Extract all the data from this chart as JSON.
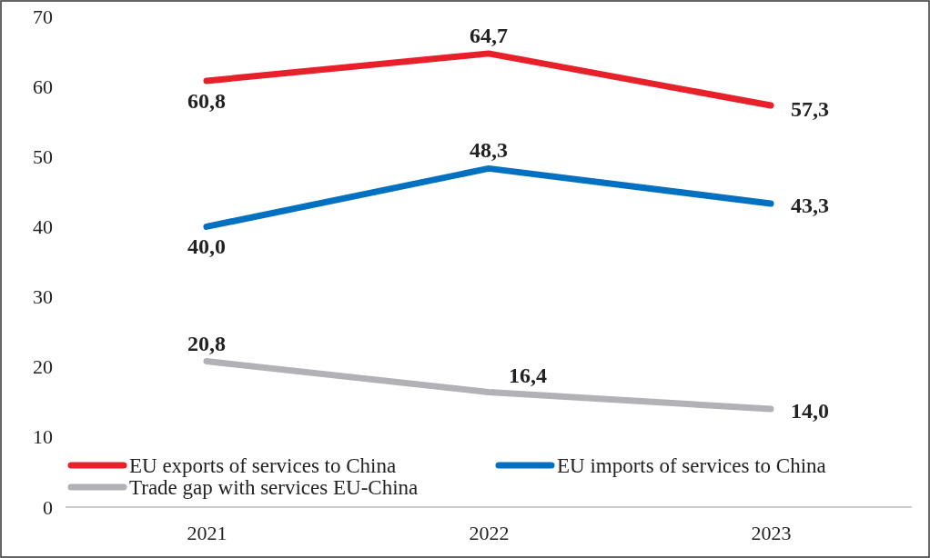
{
  "chart_data": {
    "type": "line",
    "categories": [
      "2021",
      "2022",
      "2023"
    ],
    "series": [
      {
        "name": "EU exports of services to China",
        "color": "#e8202a",
        "values": [
          60.8,
          64.7,
          57.3
        ],
        "value_labels": [
          "60,8",
          "64,7",
          "57,3"
        ]
      },
      {
        "name": "EU imports of services to China",
        "color": "#0070c0",
        "values": [
          40.0,
          48.3,
          43.3
        ],
        "value_labels": [
          "40,0",
          "48,3",
          "43,3"
        ]
      },
      {
        "name": "Trade gap with services EU-China",
        "color": "#b2b2b6",
        "values": [
          20.8,
          16.4,
          14.0
        ],
        "value_labels": [
          "20,8",
          "16,4",
          "14,0"
        ]
      }
    ],
    "ylim": [
      0,
      70
    ],
    "yticks": [
      0,
      10,
      20,
      30,
      40,
      50,
      60,
      70
    ],
    "grid": false,
    "legend": "bottom left",
    "marker": "none",
    "line_style": "solid"
  }
}
